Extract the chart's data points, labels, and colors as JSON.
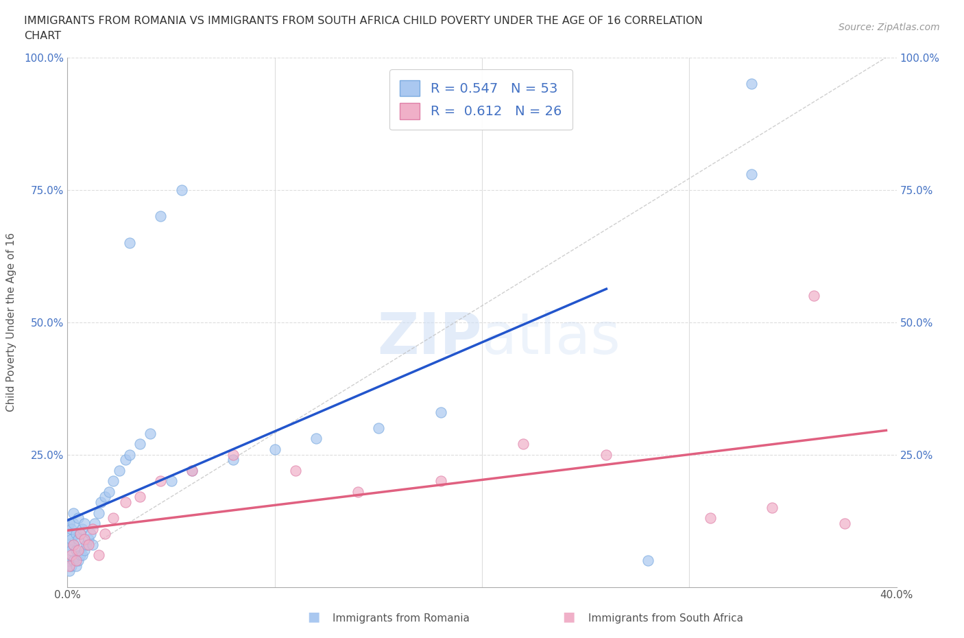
{
  "title_line1": "IMMIGRANTS FROM ROMANIA VS IMMIGRANTS FROM SOUTH AFRICA CHILD POVERTY UNDER THE AGE OF 16 CORRELATION",
  "title_line2": "CHART",
  "source": "Source: ZipAtlas.com",
  "ylabel": "Child Poverty Under the Age of 16",
  "xlabel_romania": "Immigrants from Romania",
  "xlabel_south_africa": "Immigrants from South Africa",
  "xlim": [
    0.0,
    0.4
  ],
  "ylim": [
    0.0,
    1.0
  ],
  "romania_color": "#aac8f0",
  "romania_edge_color": "#7aaae0",
  "south_africa_color": "#f0b0c8",
  "south_africa_edge_color": "#e080a8",
  "romania_R": 0.547,
  "romania_N": 53,
  "south_africa_R": 0.612,
  "south_africa_N": 26,
  "legend_text_color": "#4472c4",
  "background_color": "#ffffff",
  "grid_color": "#dddddd",
  "romania_line_color": "#2255cc",
  "south_africa_line_color": "#e06080",
  "dashed_line_color": "#bbbbbb",
  "romania_x": [
    0.001,
    0.001,
    0.001,
    0.001,
    0.001,
    0.002,
    0.002,
    0.002,
    0.002,
    0.003,
    0.003,
    0.003,
    0.003,
    0.004,
    0.004,
    0.004,
    0.005,
    0.005,
    0.005,
    0.006,
    0.006,
    0.007,
    0.007,
    0.008,
    0.008,
    0.009,
    0.01,
    0.011,
    0.012,
    0.013,
    0.015,
    0.016,
    0.018,
    0.02,
    0.022,
    0.025,
    0.028,
    0.03,
    0.035,
    0.04,
    0.05,
    0.06,
    0.08,
    0.1,
    0.12,
    0.15,
    0.18,
    0.03,
    0.045,
    0.055,
    0.28,
    0.33,
    0.33
  ],
  "romania_y": [
    0.03,
    0.05,
    0.08,
    0.1,
    0.12,
    0.04,
    0.07,
    0.09,
    0.11,
    0.05,
    0.08,
    0.12,
    0.14,
    0.04,
    0.07,
    0.1,
    0.05,
    0.09,
    0.13,
    0.06,
    0.1,
    0.06,
    0.11,
    0.07,
    0.12,
    0.08,
    0.09,
    0.1,
    0.08,
    0.12,
    0.14,
    0.16,
    0.17,
    0.18,
    0.2,
    0.22,
    0.24,
    0.25,
    0.27,
    0.29,
    0.2,
    0.22,
    0.24,
    0.26,
    0.28,
    0.3,
    0.33,
    0.65,
    0.7,
    0.75,
    0.05,
    0.78,
    0.95
  ],
  "south_africa_x": [
    0.001,
    0.002,
    0.003,
    0.004,
    0.005,
    0.006,
    0.008,
    0.01,
    0.012,
    0.015,
    0.018,
    0.022,
    0.028,
    0.035,
    0.045,
    0.06,
    0.08,
    0.11,
    0.14,
    0.18,
    0.22,
    0.26,
    0.31,
    0.34,
    0.36,
    0.375
  ],
  "south_africa_y": [
    0.04,
    0.06,
    0.08,
    0.05,
    0.07,
    0.1,
    0.09,
    0.08,
    0.11,
    0.06,
    0.1,
    0.13,
    0.16,
    0.17,
    0.2,
    0.22,
    0.25,
    0.22,
    0.18,
    0.2,
    0.27,
    0.25,
    0.13,
    0.15,
    0.55,
    0.12
  ]
}
